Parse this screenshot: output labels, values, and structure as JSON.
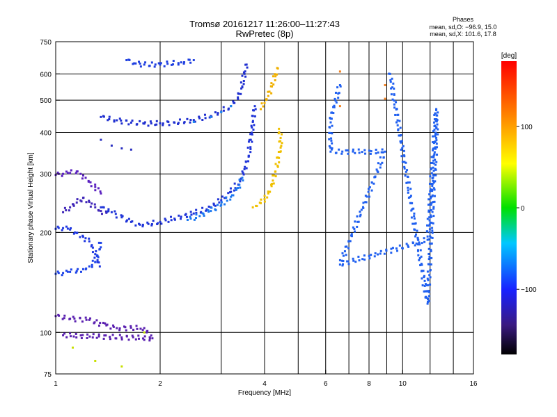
{
  "chart_data": {
    "type": "scatter",
    "title": "Tromsø 20161217 11:26:00–11:27:43",
    "subtitle": "RwPretec (8p)",
    "xlabel": "Frequency [MHz]",
    "ylabel": "Stationary phase Virtual Height [km]",
    "xscale": "log",
    "yscale": "log",
    "xlim": [
      1,
      16
    ],
    "ylim": [
      75,
      750
    ],
    "x_ticks": [
      1,
      2,
      4,
      6,
      8,
      10,
      16
    ],
    "x_tick_labels": [
      "1",
      "2",
      "4",
      "6",
      "8",
      "10",
      "16"
    ],
    "x_minor_ticks": [
      3,
      5,
      7,
      9,
      12,
      14
    ],
    "y_ticks": [
      75,
      100,
      200,
      300,
      400,
      500,
      600,
      750
    ],
    "y_tick_labels": [
      "75",
      "100",
      "200",
      "300",
      "400",
      "500",
      "600",
      "750"
    ],
    "grid": true,
    "stats": {
      "header": "Phases",
      "line1": "mean, sd,O: −96.9, 15.0",
      "line2": "mean, sd,X: 101.6, 17.8"
    },
    "colorbar": {
      "label": "[deg]",
      "range": [
        -180,
        180
      ],
      "ticks": [
        100,
        0,
        -100
      ],
      "tick_labels": [
        "100",
        "0",
        "−100"
      ]
    },
    "series": [
      {
        "phase": -140,
        "color": "#5a20c0",
        "points": [
          [
            1.0,
            298
          ],
          [
            1.05,
            300
          ],
          [
            1.1,
            302
          ],
          [
            1.15,
            305
          ],
          [
            1.18,
            300
          ],
          [
            1.22,
            292
          ],
          [
            1.26,
            283
          ],
          [
            1.3,
            274
          ],
          [
            1.35,
            262
          ]
        ]
      },
      {
        "phase": -135,
        "color": "#4026b8",
        "points": [
          [
            1.05,
            230
          ],
          [
            1.1,
            238
          ],
          [
            1.15,
            246
          ],
          [
            1.2,
            254
          ],
          [
            1.25,
            247
          ],
          [
            1.3,
            238
          ],
          [
            1.35,
            232
          ],
          [
            1.4,
            229
          ]
        ]
      },
      {
        "phase": -110,
        "color": "#2038e0",
        "points": [
          [
            1.0,
            205
          ],
          [
            1.05,
            206
          ],
          [
            1.1,
            204
          ],
          [
            1.15,
            199
          ],
          [
            1.2,
            194
          ],
          [
            1.25,
            188
          ],
          [
            1.28,
            180
          ],
          [
            1.3,
            172
          ],
          [
            1.32,
            165
          ],
          [
            1.34,
            158
          ]
        ]
      },
      {
        "phase": -105,
        "color": "#1f45e8",
        "points": [
          [
            1.0,
            150
          ],
          [
            1.05,
            151
          ],
          [
            1.1,
            152
          ],
          [
            1.15,
            153
          ],
          [
            1.2,
            155
          ],
          [
            1.25,
            158
          ],
          [
            1.3,
            163
          ],
          [
            1.32,
            170
          ],
          [
            1.34,
            178
          ],
          [
            1.35,
            186
          ]
        ]
      },
      {
        "phase": -110,
        "color": "#2035d8",
        "points": [
          [
            1.35,
            238
          ],
          [
            1.45,
            230
          ],
          [
            1.55,
            222
          ],
          [
            1.65,
            215
          ],
          [
            1.75,
            211
          ],
          [
            1.85,
            212
          ],
          [
            2.0,
            215
          ],
          [
            2.2,
            220
          ],
          [
            2.5,
            228
          ],
          [
            2.8,
            238
          ],
          [
            3.0,
            250
          ],
          [
            3.2,
            265
          ],
          [
            3.4,
            285
          ],
          [
            3.5,
            310
          ],
          [
            3.6,
            340
          ],
          [
            3.65,
            380
          ],
          [
            3.7,
            430
          ],
          [
            3.75,
            480
          ]
        ]
      },
      {
        "phase": -80,
        "color": "#1c78f0",
        "points": [
          [
            2.4,
            218
          ],
          [
            2.6,
            224
          ],
          [
            2.8,
            232
          ],
          [
            3.0,
            242
          ],
          [
            3.2,
            256
          ],
          [
            3.35,
            272
          ],
          [
            3.45,
            292
          ]
        ]
      },
      {
        "phase": -110,
        "color": "#2030d0",
        "points": [
          [
            1.35,
            445
          ],
          [
            1.5,
            435
          ],
          [
            1.65,
            428
          ],
          [
            1.8,
            425
          ],
          [
            2.0,
            426
          ],
          [
            2.2,
            428
          ],
          [
            2.5,
            436
          ],
          [
            2.8,
            448
          ],
          [
            3.0,
            462
          ],
          [
            3.2,
            480
          ],
          [
            3.35,
            510
          ],
          [
            3.45,
            550
          ],
          [
            3.5,
            600
          ],
          [
            3.55,
            640
          ]
        ]
      },
      {
        "phase": -75,
        "color": "#1a88f0",
        "points": [
          [
            2.5,
            430
          ],
          [
            2.8,
            445
          ],
          [
            3.0,
            460
          ],
          [
            3.2,
            480
          ]
        ]
      },
      {
        "phase": -120,
        "color": "#2a2fc0",
        "points": [
          [
            1.35,
            380
          ],
          [
            1.45,
            365
          ],
          [
            1.55,
            358
          ],
          [
            1.65,
            355
          ]
        ]
      },
      {
        "phase": -115,
        "color": "#2040e0",
        "points": [
          [
            1.6,
            660
          ],
          [
            1.7,
            645
          ],
          [
            1.8,
            640
          ],
          [
            2.0,
            640
          ],
          [
            2.3,
            650
          ],
          [
            2.5,
            660
          ]
        ]
      },
      {
        "phase": 100,
        "color": "#f0c000",
        "points": [
          [
            3.7,
            238
          ],
          [
            3.8,
            240
          ],
          [
            3.9,
            245
          ],
          [
            4.0,
            252
          ],
          [
            4.1,
            262
          ],
          [
            4.2,
            280
          ],
          [
            4.3,
            305
          ],
          [
            4.4,
            335
          ],
          [
            4.45,
            360
          ],
          [
            4.45,
            385
          ],
          [
            4.4,
            410
          ]
        ]
      },
      {
        "phase": 110,
        "color": "#f0b000",
        "points": [
          [
            3.9,
            470
          ],
          [
            4.0,
            490
          ],
          [
            4.1,
            515
          ],
          [
            4.2,
            550
          ],
          [
            4.3,
            590
          ],
          [
            4.35,
            625
          ]
        ]
      },
      {
        "phase": 140,
        "color": "#f08020",
        "points": [
          [
            6.6,
            610
          ],
          [
            8.9,
            555
          ],
          [
            6.6,
            480
          ],
          [
            8.9,
            505
          ]
        ]
      },
      {
        "phase": -100,
        "color": "#2060f0",
        "points": [
          [
            6.6,
            555
          ],
          [
            6.2,
            440
          ],
          [
            6.2,
            350
          ],
          [
            8.9,
            350
          ],
          [
            6.6,
            160
          ],
          [
            11.8,
            190
          ],
          [
            12.5,
            470
          ],
          [
            12.5,
            385
          ],
          [
            11.8,
            122
          ],
          [
            9.2,
            600
          ]
        ]
      },
      {
        "phase": -150,
        "color": "#5a20b0",
        "points": [
          [
            1.0,
            112
          ],
          [
            1.1,
            110
          ],
          [
            1.25,
            109
          ],
          [
            1.4,
            105
          ],
          [
            1.5,
            103
          ],
          [
            1.8,
            103
          ],
          [
            1.9,
            96
          ],
          [
            1.05,
            98
          ]
        ]
      },
      {
        "phase": 60,
        "color": "#c8e000",
        "points": [
          [
            1.12,
            90
          ],
          [
            1.3,
            82
          ],
          [
            1.55,
            79
          ],
          [
            1.8,
            100
          ]
        ]
      }
    ]
  }
}
